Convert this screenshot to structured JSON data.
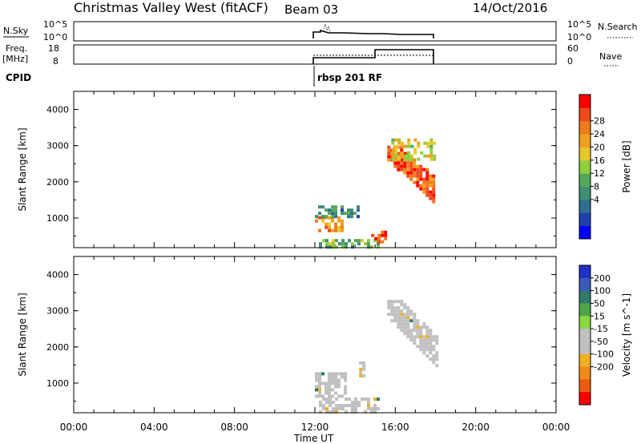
{
  "header": {
    "station": "Christmas Valley West (fitACF)",
    "beam": "Beam 03",
    "date": "14/Oct/2016"
  },
  "summary": {
    "nsky_label": "N.Sky",
    "nsky_ticks": [
      "10^5",
      "10^0"
    ],
    "nsearch_label": "N.Search",
    "freq_label_1": "Freq.",
    "freq_label_2": "[MHz]",
    "freq_ticks": [
      "18",
      "8"
    ],
    "nave_label": "Nave",
    "nave_ticks": [
      "60",
      "0"
    ],
    "cpid_label": "CPID",
    "cpid_text": "rbsp 201 RF"
  },
  "panels": {
    "ylabel": "Slant Range [km]",
    "yticks": [
      "4000",
      "3000",
      "2000",
      "1000"
    ],
    "xticks": [
      "00:00",
      "04:00",
      "08:00",
      "12:00",
      "16:00",
      "20:00",
      "00:00"
    ],
    "xlabel": "Time UT"
  },
  "power_scale": {
    "label": "Power [dB]",
    "ticks": [
      "28",
      "24",
      "20",
      "16",
      "12",
      "8",
      "4"
    ],
    "colors": [
      "#0000ff",
      "#1f3fb0",
      "#2f6e8e",
      "#3f8f73",
      "#53a85a",
      "#8fcf3e",
      "#e6c82a",
      "#f0a020",
      "#ef7a1a",
      "#f04a1a",
      "#ff0000"
    ]
  },
  "velocity_scale": {
    "label": "Velocity [m s^-1]",
    "ticks": [
      "200",
      "100",
      "50",
      "15",
      "-15",
      "-50",
      "-100",
      "-200"
    ],
    "colors": [
      "#2030c8",
      "#3a5ab8",
      "#2f7a6a",
      "#4fa64a",
      "#88d840",
      "#c0c0c0",
      "#c0c0c0",
      "#f0b020",
      "#f08a18",
      "#f05a10",
      "#ff0000"
    ]
  },
  "chart_data": {
    "type": "heatmap",
    "time_range_hours": [
      0,
      24
    ],
    "range_km": [
      180,
      4500
    ],
    "nsky": {
      "scale": "log",
      "ticks": [
        "10^5",
        "10^0"
      ],
      "data_start_hour": 12.0,
      "data_end_hour": 18.0,
      "level": "near 10^0"
    },
    "frequency_mhz": {
      "ticks": [
        "8",
        "18"
      ],
      "segments": [
        {
          "from": 12.0,
          "to": 14.7,
          "value": 10.5
        },
        {
          "from": 14.7,
          "to": 15.2,
          "value": 11.0
        },
        {
          "from": 15.2,
          "to": 18.0,
          "value": 16.5
        }
      ]
    },
    "nave": {
      "ticks": [
        "0",
        "60"
      ],
      "value": 22
    },
    "cpid": "rbsp 201 RF",
    "power_panel": {
      "label": "Power [dB]",
      "regions": [
        {
          "from_hour": 12.0,
          "to_hour": 13.3,
          "range_from": 650,
          "range_to": 1050,
          "power_db": 22
        },
        {
          "from_hour": 12.0,
          "to_hour": 14.2,
          "range_from": 1050,
          "range_to": 1350,
          "power_db": 9
        },
        {
          "from_hour": 12.2,
          "to_hour": 15.2,
          "range_from": 200,
          "range_to": 420,
          "power_db": 12
        },
        {
          "from_hour": 14.8,
          "to_hour": 15.5,
          "range_from": 300,
          "range_to": 650,
          "power_db": 28
        },
        {
          "from_hour": 15.6,
          "to_hour": 17.9,
          "range_from": 1300,
          "range_to": 3000,
          "power_db": 26
        },
        {
          "from_hour": 15.8,
          "to_hour": 18.0,
          "range_from": 2600,
          "range_to": 3200,
          "power_db": 17
        }
      ]
    },
    "velocity_panel": {
      "label": "Velocity [m s^-1]",
      "regions": [
        {
          "from_hour": 12.0,
          "to_hour": 13.5,
          "range_from": 650,
          "range_to": 1300,
          "velocity": 0
        },
        {
          "from_hour": 12.2,
          "to_hour": 15.2,
          "range_from": 200,
          "range_to": 600,
          "velocity": 0
        },
        {
          "from_hour": 14.2,
          "to_hour": 14.4,
          "range_from": 1200,
          "range_to": 1600,
          "velocity": -50
        },
        {
          "from_hour": 15.6,
          "to_hour": 18.0,
          "range_from": 1300,
          "range_to": 3300,
          "velocity": 5
        }
      ]
    }
  }
}
